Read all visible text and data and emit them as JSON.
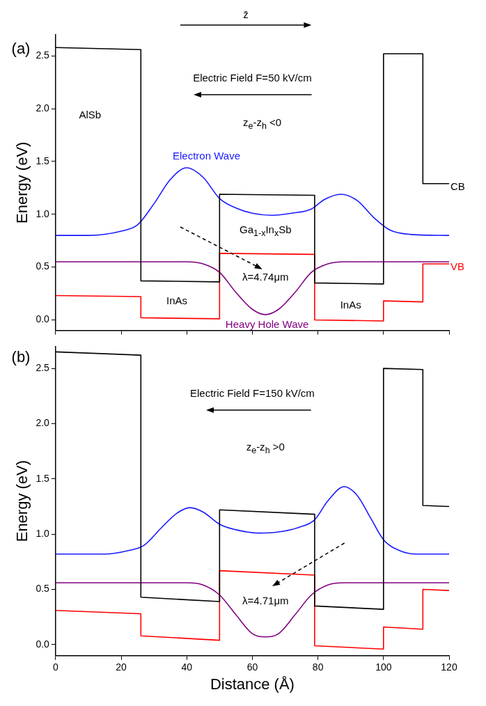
{
  "chart_data": [
    {
      "type": "line",
      "xlim": [
        0,
        120
      ],
      "xticks": [
        0,
        20,
        40,
        60,
        80,
        100,
        120
      ],
      "ylim": [
        -0.1,
        2.7
      ],
      "yticks": [
        {
          "value": 0,
          "label": "0.0"
        },
        0.5,
        {
          "value": 1,
          "label": "1.0"
        },
        1.5,
        {
          "value": 2,
          "label": "2.0"
        },
        2.5
      ],
      "ylabel": "Energy (eV)",
      "tick_labels": "y",
      "grid": false,
      "legend": false,
      "marker": "none",
      "line_style": "solid",
      "annotations": [
        "(a)",
        "z̄",
        "Electric Field F=50 kV/cm",
        "z$_{e}$-z$_{h}$ <0",
        "AlSb",
        "Ga$_{1-x}$In$_{x}$Sb",
        "λ=4.74μm",
        "InAs",
        "InAs"
      ],
      "series": [
        {
          "name": "CB",
          "color": "#000000",
          "x": [
            0,
            26,
            26,
            50,
            50,
            79,
            79,
            100,
            100,
            112,
            112,
            120
          ],
          "values": [
            2.58,
            2.56,
            0.37,
            0.36,
            1.19,
            1.18,
            0.35,
            0.34,
            2.52,
            2.52,
            1.29,
            1.29
          ]
        },
        {
          "name": "VB",
          "color": "#ff0000",
          "x": [
            0,
            26,
            26,
            50,
            50,
            79,
            79,
            100,
            100,
            112,
            112,
            120
          ],
          "values": [
            0.23,
            0.22,
            0.02,
            0.01,
            0.63,
            0.62,
            0,
            -0.01,
            0.18,
            0.17,
            0.53,
            0.53
          ]
        },
        {
          "name": "Electron Wave",
          "color": "#1a1aff",
          "x": [
            0,
            10,
            20,
            25,
            30,
            35,
            40,
            45,
            50,
            55,
            60,
            66,
            72,
            78,
            82,
            87,
            92,
            97,
            102,
            108,
            120
          ],
          "values": [
            0.8,
            0.8,
            0.84,
            0.9,
            1.1,
            1.33,
            1.44,
            1.35,
            1.15,
            1.06,
            1.01,
            0.99,
            1.01,
            1.05,
            1.14,
            1.19,
            1.13,
            0.97,
            0.85,
            0.81,
            0.8
          ]
        },
        {
          "name": "Heavy Hole Wave",
          "color": "#800080",
          "x": [
            0,
            40,
            45,
            50,
            55,
            60,
            64,
            68,
            73,
            78,
            83,
            88,
            120
          ],
          "values": [
            0.55,
            0.55,
            0.53,
            0.45,
            0.26,
            0.1,
            0.05,
            0.1,
            0.26,
            0.45,
            0.53,
            0.55,
            0.55
          ]
        }
      ]
    },
    {
      "type": "line",
      "xlim": [
        0,
        120
      ],
      "xticks": [
        0,
        20,
        40,
        60,
        80,
        100,
        120
      ],
      "ylim": [
        -0.1,
        2.7
      ],
      "yticks": [
        {
          "value": 0,
          "label": "0.0"
        },
        0.5,
        {
          "value": 1,
          "label": "1.0"
        },
        1.5,
        {
          "value": 2,
          "label": "2.0"
        },
        2.5
      ],
      "xlabel": "Distance (Å)",
      "ylabel": "Energy (eV)",
      "grid": false,
      "legend": false,
      "marker": "none",
      "line_style": "solid",
      "annotations": [
        "(b)",
        "Electric Field F=150 kV/cm",
        "z$_{e}$-z$_{h}$ >0",
        "λ=4.71μm"
      ],
      "series": [
        {
          "color": "#000000",
          "x": [
            0,
            26,
            26,
            50,
            50,
            79,
            79,
            100,
            100,
            112,
            112,
            120
          ],
          "values": [
            2.65,
            2.62,
            0.43,
            0.39,
            1.22,
            1.18,
            0.35,
            0.32,
            2.5,
            2.49,
            1.26,
            1.25
          ]
        },
        {
          "color": "#ff0000",
          "x": [
            0,
            26,
            26,
            50,
            50,
            79,
            79,
            100,
            100,
            112,
            112,
            120
          ],
          "values": [
            0.31,
            0.28,
            0.08,
            0.04,
            0.67,
            0.63,
            -0.01,
            -0.04,
            0.16,
            0.14,
            0.5,
            0.49
          ]
        },
        {
          "color": "#1a1aff",
          "x": [
            0,
            15,
            22,
            27,
            32,
            37,
            41,
            45,
            50,
            55,
            62,
            68,
            74,
            79,
            83,
            88,
            92,
            96,
            100,
            105,
            110,
            120
          ],
          "values": [
            0.82,
            0.82,
            0.85,
            0.9,
            1.05,
            1.19,
            1.24,
            1.2,
            1.09,
            1.04,
            1.01,
            1.02,
            1.06,
            1.13,
            1.3,
            1.43,
            1.35,
            1.15,
            0.95,
            0.85,
            0.82,
            0.82
          ]
        },
        {
          "color": "#800080",
          "x": [
            0,
            40,
            45,
            50,
            55,
            60,
            64,
            68,
            73,
            78,
            83,
            88,
            120
          ],
          "values": [
            0.56,
            0.56,
            0.54,
            0.45,
            0.27,
            0.1,
            0.07,
            0.1,
            0.27,
            0.45,
            0.54,
            0.56,
            0.56
          ]
        }
      ]
    }
  ]
}
